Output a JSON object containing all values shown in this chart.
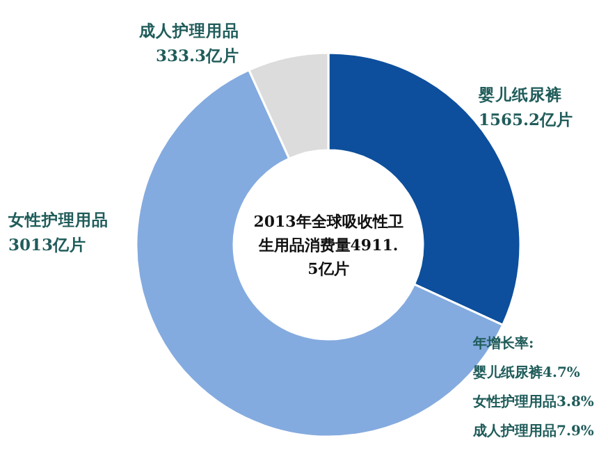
{
  "chart_data": {
    "type": "donut",
    "title": "2013年全球吸收性卫生用品消费量4911.5亿片",
    "categories": [
      "婴儿纸尿裤",
      "女性护理用品",
      "成人护理用品"
    ],
    "values": [
      1565.2,
      3013,
      333.3
    ],
    "value_labels": [
      "1565.2亿片",
      "3013亿片",
      "333.3亿片"
    ],
    "colors": [
      "#0d4f9c",
      "#84abdf",
      "#dcdcdc"
    ],
    "annotations": [
      "年增长率:",
      "婴儿纸尿裤4.7%",
      "女性护理用品3.8%",
      "成人护理用品7.9%"
    ]
  }
}
